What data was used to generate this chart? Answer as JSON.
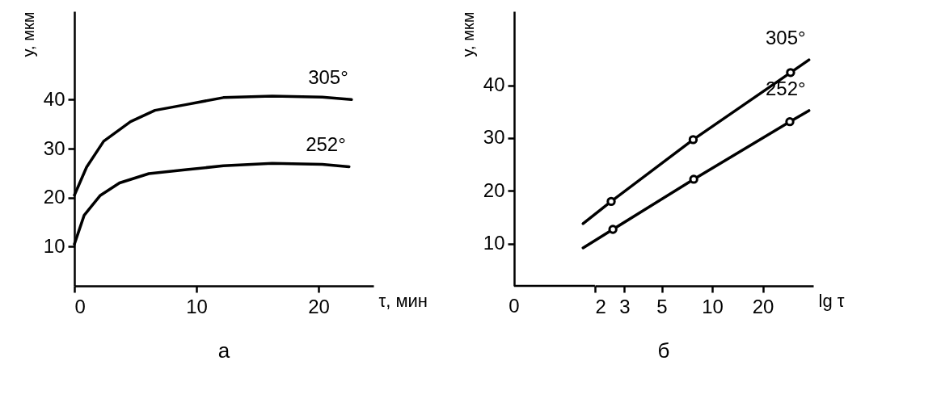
{
  "chart_data": [
    {
      "type": "line",
      "title": "а",
      "xlabel": "τ, мин",
      "ylabel": "y, мкм",
      "xlim": [
        0,
        24.5
      ],
      "ylim": [
        2,
        58
      ],
      "xticks": [
        0,
        10,
        20
      ],
      "yticks": [
        10,
        20,
        30,
        40
      ],
      "series": [
        {
          "name": "305°",
          "color": "#000000",
          "x": [
            0,
            1.0,
            2.4,
            4.6,
            6.6,
            9.2,
            12.2,
            16.2,
            20.3,
            22.7
          ],
          "values": [
            20.5,
            26.2,
            31.5,
            35.5,
            37.8,
            39,
            40.4,
            40.7,
            40.5,
            40
          ]
        },
        {
          "name": "252°",
          "color": "#000000",
          "x": [
            0,
            0.8,
            2.1,
            3.7,
            6.1,
            9.2,
            12.2,
            16.2,
            20.3,
            22.5
          ],
          "values": [
            10.5,
            16.4,
            20.4,
            23,
            24.9,
            25.7,
            26.5,
            27,
            26.8,
            26.3
          ]
        }
      ]
    },
    {
      "type": "line",
      "title": "б",
      "xlabel": "lg τ",
      "ylabel": "y, мкм",
      "log": "x",
      "xlim": [
        0,
        40
      ],
      "ylim": [
        2,
        54
      ],
      "xticks": [
        0,
        2,
        3,
        5,
        10,
        20
      ],
      "yticks": [
        10,
        20,
        30,
        40
      ],
      "series": [
        {
          "name": "305°",
          "color": "#000000",
          "x": [
            1.7,
            2.5,
            7.7,
            29.3,
            37.7
          ],
          "values": [
            13.8,
            18,
            29.7,
            42.4,
            44.8
          ]
        },
        {
          "name": "252°",
          "color": "#000000",
          "x": [
            1.7,
            2.56,
            7.76,
            29,
            37.7
          ],
          "values": [
            9.2,
            12.7,
            22.2,
            33.1,
            35.2
          ]
        },
        {
          "type": "scatter",
          "marker": "circle",
          "color": "#000000",
          "x": [
            2.5,
            7.7,
            29.3
          ],
          "values": [
            18,
            29.7,
            42.4
          ]
        },
        {
          "type": "scatter",
          "marker": "circle",
          "color": "#000000",
          "x": [
            2.56,
            7.76,
            29
          ],
          "values": [
            12.7,
            22.2,
            33.1
          ]
        }
      ]
    }
  ]
}
